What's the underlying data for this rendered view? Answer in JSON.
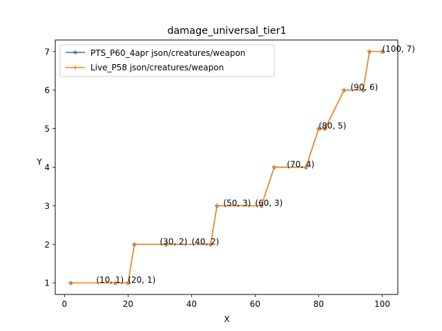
{
  "chart_data": {
    "type": "line",
    "title": "damage_universal_tier1",
    "xlabel": "X",
    "ylabel": "Y",
    "xlim": [
      -2.9,
      104.9
    ],
    "ylim": [
      0.7,
      7.3
    ],
    "xticks": [
      0,
      20,
      40,
      60,
      80,
      100
    ],
    "yticks": [
      1,
      2,
      3,
      4,
      5,
      6,
      7
    ],
    "grid": false,
    "legend_position": "top-left",
    "series": [
      {
        "name": "PTS_P60_4apr json/creatures/weapon",
        "color": "#1f77b4",
        "marker": "star",
        "x": [
          2,
          16,
          20,
          22,
          32,
          46,
          48,
          62,
          66,
          76,
          80,
          82,
          88,
          94,
          96,
          100
        ],
        "y": [
          1,
          1,
          1,
          2,
          2,
          2,
          3,
          3,
          4,
          4,
          5,
          5,
          6,
          6,
          7,
          7
        ]
      },
      {
        "name": "Live_P58 json/creatures/weapon",
        "color": "#ff7f0e",
        "marker": "plus",
        "x": [
          2,
          16,
          20,
          22,
          32,
          46,
          48,
          62,
          66,
          76,
          80,
          82,
          88,
          94,
          96,
          100
        ],
        "y": [
          1,
          1,
          1,
          2,
          2,
          2,
          3,
          3,
          4,
          4,
          5,
          5,
          6,
          6,
          7,
          7
        ]
      }
    ],
    "annotations": [
      {
        "x": 10,
        "y": 1,
        "text": "(10, 1)"
      },
      {
        "x": 20,
        "y": 1,
        "text": "(20, 1)"
      },
      {
        "x": 30,
        "y": 2,
        "text": "(30, 2)"
      },
      {
        "x": 40,
        "y": 2,
        "text": "(40, 2)"
      },
      {
        "x": 50,
        "y": 3,
        "text": "(50, 3)"
      },
      {
        "x": 60,
        "y": 3,
        "text": "(60, 3)"
      },
      {
        "x": 70,
        "y": 4,
        "text": "(70, 4)"
      },
      {
        "x": 80,
        "y": 5,
        "text": "(80, 5)"
      },
      {
        "x": 90,
        "y": 6,
        "text": "(90, 6)"
      },
      {
        "x": 100,
        "y": 7,
        "text": "(100, 7)"
      }
    ]
  }
}
